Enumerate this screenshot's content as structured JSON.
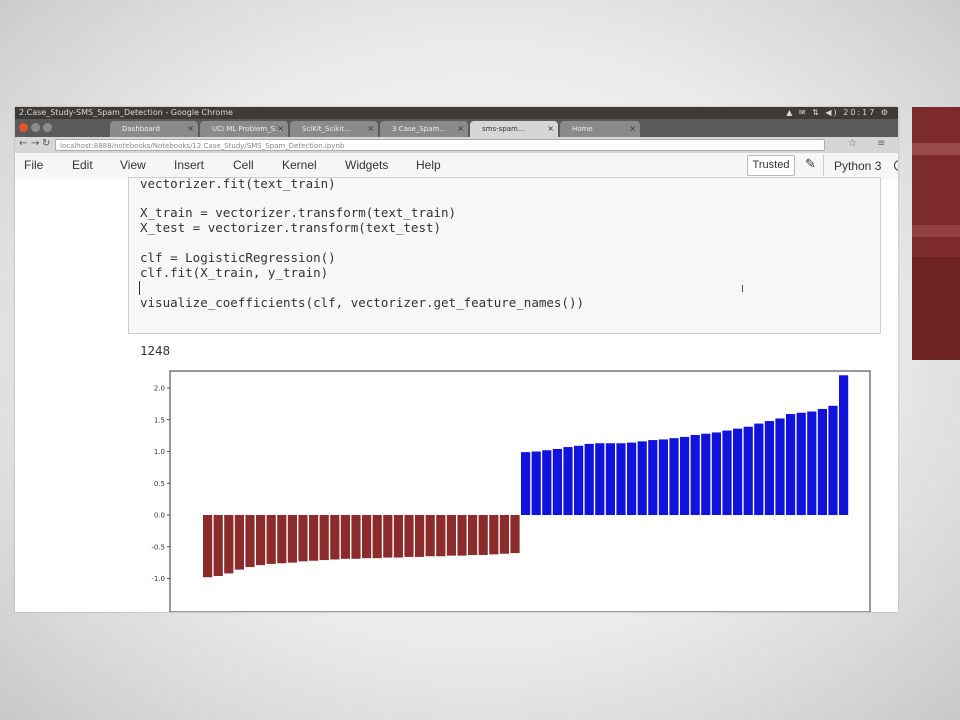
{
  "window": {
    "title": "2.Case_Study-SMS_Spam_Detection - Google Chrome",
    "tray_text": "▲ ✉ ⇅ ◀) 20:17 ⚙"
  },
  "browser": {
    "tabs": [
      "Dashboard",
      "UCI ML Problem_S...",
      "SciKit_Scikit...",
      "3 Case_Spam...",
      "sms-spam...",
      "Home"
    ],
    "active_tab_index": 4,
    "url": "localhost:8888/notebooks/Notebooks/12 Case_Study/SMS_Spam_Detection.ipynb"
  },
  "notebook_menu": {
    "items": [
      "File",
      "Edit",
      "View",
      "Insert",
      "Cell",
      "Kernel",
      "Widgets",
      "Help"
    ],
    "trusted_label": "Trusted",
    "kernel_label": "Python 3"
  },
  "code_cell": {
    "lines": [
      "vectorizer.fit(text_train)",
      "",
      "X_train = vectorizer.transform(text_train)",
      "X_test = vectorizer.transform(text_test)",
      "",
      "clf = LogisticRegression()",
      "clf.fit(X_train, y_train)",
      "",
      "visualize_coefficients(clf, vectorizer.get_feature_names())"
    ]
  },
  "output": {
    "text": "1248"
  },
  "colors": {
    "negative": "#8b2b2b",
    "positive": "#1212dd",
    "accent_side": "#7d2a2a"
  },
  "chart_data": {
    "type": "bar",
    "title": "",
    "xlabel": "",
    "ylabel": "",
    "ylim": [
      -1.2,
      2.4
    ],
    "yticks": [
      -1.0,
      -0.5,
      0.0,
      0.5,
      1.0,
      1.5,
      2.0
    ],
    "ytick_labels": [
      "-1.0",
      "-0.5",
      "0.0",
      "0.5",
      "1.0",
      "1.5",
      "2.0"
    ],
    "grid": false,
    "series": [
      {
        "values": [
          -0.98,
          -0.96,
          -0.92,
          -0.86,
          -0.82,
          -0.79,
          -0.77,
          -0.76,
          -0.75,
          -0.73,
          -0.72,
          -0.71,
          -0.7,
          -0.69,
          -0.69,
          -0.68,
          -0.68,
          -0.67,
          -0.67,
          -0.66,
          -0.66,
          -0.65,
          -0.65,
          -0.64,
          -0.64,
          -0.63,
          -0.63,
          -0.62,
          -0.61,
          -0.6
        ],
        "color": "#8b2b2b"
      },
      {
        "values": [
          0.99,
          1.0,
          1.02,
          1.04,
          1.07,
          1.09,
          1.12,
          1.13,
          1.13,
          1.13,
          1.14,
          1.16,
          1.18,
          1.19,
          1.21,
          1.23,
          1.26,
          1.28,
          1.3,
          1.33,
          1.36,
          1.39,
          1.44,
          1.48,
          1.52,
          1.59,
          1.61,
          1.63,
          1.67,
          1.72,
          2.2
        ],
        "color": "#1212dd"
      }
    ]
  }
}
